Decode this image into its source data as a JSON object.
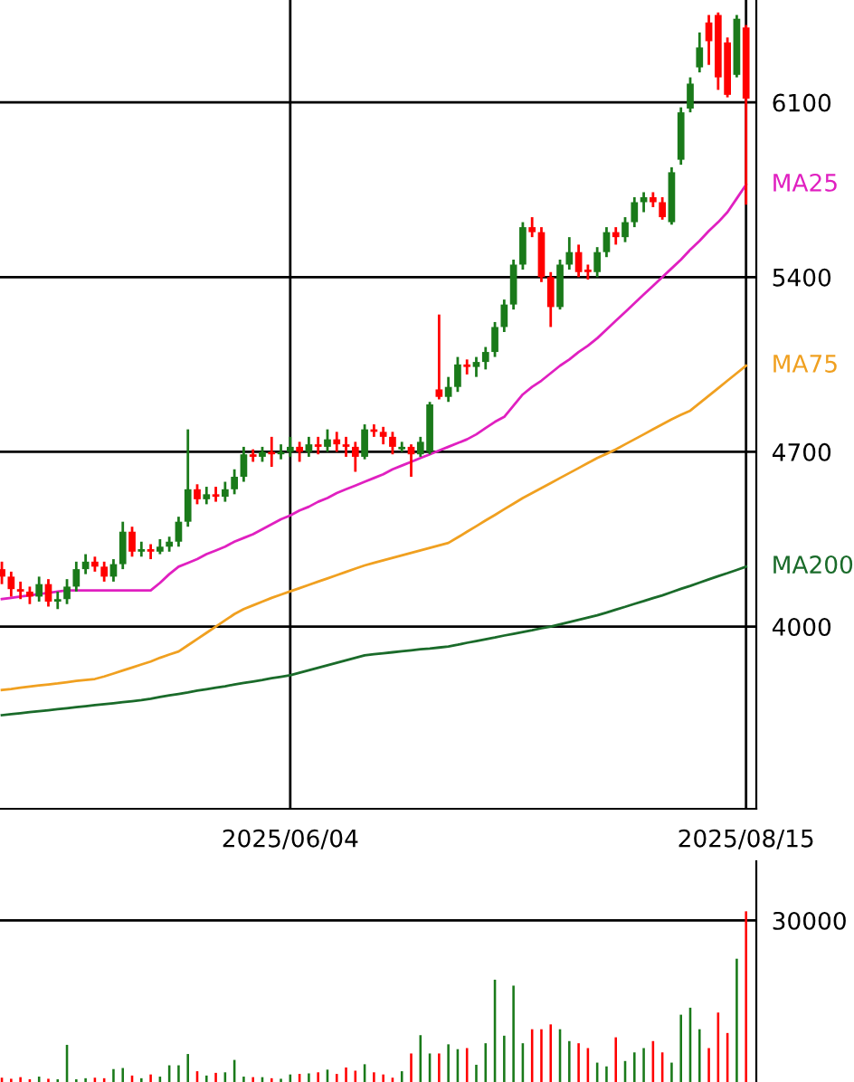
{
  "chart_data": [
    {
      "type": "candlestick",
      "categories": [
        null,
        null,
        null,
        null,
        null,
        null,
        null,
        null,
        null,
        null,
        null,
        null,
        null,
        null,
        null,
        null,
        null,
        null,
        null,
        null,
        null,
        null,
        null,
        null,
        null,
        null,
        null,
        null,
        null,
        null,
        null,
        "2025/06/04",
        null,
        null,
        null,
        null,
        null,
        null,
        null,
        null,
        null,
        null,
        null,
        null,
        null,
        null,
        null,
        null,
        null,
        null,
        null,
        null,
        null,
        null,
        null,
        null,
        null,
        null,
        null,
        null,
        null,
        null,
        null,
        null,
        null,
        null,
        null,
        null,
        null,
        null,
        null,
        null,
        null,
        null,
        null,
        null,
        null,
        null,
        null,
        null,
        "2025/08/15"
      ],
      "ohlc": [
        [
          4230,
          4260,
          4170,
          4200
        ],
        [
          4200,
          4220,
          4120,
          4150
        ],
        [
          4150,
          4180,
          4110,
          4140
        ],
        [
          4140,
          4160,
          4090,
          4120
        ],
        [
          4120,
          4200,
          4100,
          4170
        ],
        [
          4170,
          4190,
          4080,
          4100
        ],
        [
          4100,
          4140,
          4070,
          4110
        ],
        [
          4110,
          4190,
          4090,
          4160
        ],
        [
          4160,
          4260,
          4140,
          4230
        ],
        [
          4230,
          4290,
          4210,
          4260
        ],
        [
          4260,
          4280,
          4220,
          4240
        ],
        [
          4240,
          4260,
          4180,
          4200
        ],
        [
          4200,
          4270,
          4180,
          4250
        ],
        [
          4250,
          4420,
          4230,
          4380
        ],
        [
          4380,
          4400,
          4280,
          4300
        ],
        [
          4300,
          4340,
          4280,
          4310
        ],
        [
          4310,
          4330,
          4270,
          4300
        ],
        [
          4300,
          4350,
          4290,
          4320
        ],
        [
          4320,
          4360,
          4300,
          4340
        ],
        [
          4340,
          4440,
          4320,
          4420
        ],
        [
          4420,
          4790,
          4400,
          4550
        ],
        [
          4550,
          4570,
          4490,
          4510
        ],
        [
          4510,
          4560,
          4490,
          4530
        ],
        [
          4530,
          4560,
          4500,
          4520
        ],
        [
          4520,
          4580,
          4500,
          4550
        ],
        [
          4550,
          4630,
          4530,
          4600
        ],
        [
          4600,
          4720,
          4580,
          4690
        ],
        [
          4690,
          4710,
          4660,
          4680
        ],
        [
          4680,
          4720,
          4660,
          4700
        ],
        [
          4700,
          4760,
          4640,
          4690
        ],
        [
          4690,
          4730,
          4670,
          4700
        ],
        [
          4700,
          4760,
          4680,
          4720
        ],
        [
          4720,
          4740,
          4660,
          4700
        ],
        [
          4700,
          4760,
          4680,
          4730
        ],
        [
          4730,
          4760,
          4690,
          4720
        ],
        [
          4720,
          4790,
          4700,
          4750
        ],
        [
          4750,
          4780,
          4700,
          4730
        ],
        [
          4730,
          4760,
          4680,
          4720
        ],
        [
          4720,
          4740,
          4620,
          4680
        ],
        [
          4680,
          4810,
          4670,
          4790
        ],
        [
          4790,
          4810,
          4760,
          4780
        ],
        [
          4780,
          4800,
          4730,
          4760
        ],
        [
          4760,
          4780,
          4690,
          4720
        ],
        [
          4710,
          4740,
          4700,
          4720
        ],
        [
          4720,
          4730,
          4600,
          4690
        ],
        [
          4690,
          4760,
          4680,
          4740
        ],
        [
          4700,
          4900,
          4690,
          4890
        ],
        [
          4950,
          5250,
          4910,
          4920
        ],
        [
          4920,
          5000,
          4900,
          4960
        ],
        [
          4960,
          5080,
          4940,
          5050
        ],
        [
          5050,
          5070,
          5010,
          5040
        ],
        [
          5040,
          5080,
          5000,
          5060
        ],
        [
          5060,
          5120,
          5030,
          5100
        ],
        [
          5100,
          5220,
          5080,
          5200
        ],
        [
          5200,
          5310,
          5180,
          5290
        ],
        [
          5290,
          5470,
          5270,
          5450
        ],
        [
          5450,
          5620,
          5430,
          5600
        ],
        [
          5600,
          5640,
          5560,
          5580
        ],
        [
          5580,
          5600,
          5380,
          5400
        ],
        [
          5400,
          5420,
          5200,
          5280
        ],
        [
          5280,
          5470,
          5270,
          5450
        ],
        [
          5450,
          5560,
          5430,
          5500
        ],
        [
          5500,
          5530,
          5400,
          5420
        ],
        [
          5430,
          5450,
          5390,
          5420
        ],
        [
          5420,
          5520,
          5400,
          5500
        ],
        [
          5500,
          5600,
          5480,
          5580
        ],
        [
          5580,
          5600,
          5530,
          5560
        ],
        [
          5560,
          5640,
          5540,
          5620
        ],
        [
          5620,
          5720,
          5600,
          5700
        ],
        [
          5700,
          5740,
          5660,
          5720
        ],
        [
          5720,
          5740,
          5680,
          5700
        ],
        [
          5700,
          5720,
          5630,
          5640
        ],
        [
          5620,
          5840,
          5610,
          5820
        ],
        [
          5870,
          6080,
          5850,
          6060
        ],
        [
          6075,
          6200,
          6060,
          6175
        ],
        [
          6240,
          6380,
          6220,
          6320
        ],
        [
          6420,
          6450,
          6250,
          6345
        ],
        [
          6450,
          6460,
          6150,
          6200
        ],
        [
          6340,
          6360,
          6120,
          6130
        ],
        [
          6210,
          6450,
          6200,
          6435
        ],
        [
          6400,
          6410,
          5690,
          6115
        ]
      ],
      "colors": [
        "#ff0000",
        "#ff0000",
        "#ff0000",
        "#ff0000",
        "#1a7a1a",
        "#ff0000",
        "#1a7a1a",
        "#1a7a1a",
        "#1a7a1a",
        "#1a7a1a",
        "#ff0000",
        "#ff0000",
        "#1a7a1a",
        "#1a7a1a",
        "#ff0000",
        "#1a7a1a",
        "#ff0000",
        "#1a7a1a",
        "#1a7a1a",
        "#1a7a1a",
        "#1a7a1a",
        "#ff0000",
        "#1a7a1a",
        "#ff0000",
        "#1a7a1a",
        "#1a7a1a",
        "#1a7a1a",
        "#ff0000",
        "#1a7a1a",
        "#ff0000",
        "#1a7a1a",
        "#1a7a1a",
        "#ff0000",
        "#1a7a1a",
        "#ff0000",
        "#1a7a1a",
        "#ff0000",
        "#ff0000",
        "#ff0000",
        "#1a7a1a",
        "#ff0000",
        "#ff0000",
        "#ff0000",
        "#1a7a1a",
        "#ff0000",
        "#1a7a1a",
        "#1a7a1a",
        "#ff0000",
        "#1a7a1a",
        "#1a7a1a",
        "#ff0000",
        "#1a7a1a",
        "#1a7a1a",
        "#1a7a1a",
        "#1a7a1a",
        "#1a7a1a",
        "#1a7a1a",
        "#ff0000",
        "#ff0000",
        "#ff0000",
        "#1a7a1a",
        "#1a7a1a",
        "#ff0000",
        "#ff0000",
        "#1a7a1a",
        "#1a7a1a",
        "#ff0000",
        "#1a7a1a",
        "#1a7a1a",
        "#1a7a1a",
        "#ff0000",
        "#ff0000",
        "#1a7a1a",
        "#1a7a1a",
        "#1a7a1a",
        "#1a7a1a",
        "#ff0000",
        "#ff0000",
        "#ff0000",
        "#1a7a1a",
        "#ff0000"
      ],
      "series": [
        {
          "name": "MA25",
          "type": "line",
          "color": "#e020c0",
          "values": [
            4110,
            4115,
            4120,
            4125,
            4130,
            4135,
            4140,
            4145,
            4145,
            4145,
            4145,
            4145,
            4145,
            4145,
            4145,
            4145,
            4145,
            4175,
            4210,
            4240,
            4255,
            4270,
            4290,
            4305,
            4320,
            4340,
            4355,
            4370,
            4390,
            4410,
            4430,
            4445,
            4465,
            4480,
            4500,
            4515,
            4535,
            4550,
            4565,
            4580,
            4595,
            4610,
            4630,
            4645,
            4660,
            4675,
            4690,
            4705,
            4720,
            4735,
            4750,
            4770,
            4795,
            4820,
            4840,
            4885,
            4930,
            4960,
            4985,
            5015,
            5045,
            5070,
            5100,
            5125,
            5155,
            5190,
            5225,
            5260,
            5295,
            5330,
            5365,
            5400,
            5435,
            5470,
            5510,
            5545,
            5585,
            5620,
            5660,
            5715,
            5770
          ]
        },
        {
          "name": "MA75",
          "type": "line",
          "color": "#f0a020",
          "values": [
            3746,
            3750,
            3755,
            3760,
            3764,
            3768,
            3772,
            3777,
            3782,
            3786,
            3790,
            3800,
            3812,
            3824,
            3836,
            3848,
            3860,
            3875,
            3888,
            3900,
            3925,
            3950,
            3975,
            4000,
            4025,
            4050,
            4070,
            4085,
            4100,
            4115,
            4128,
            4141,
            4154,
            4167,
            4180,
            4193,
            4206,
            4219,
            4232,
            4245,
            4255,
            4265,
            4275,
            4285,
            4295,
            4305,
            4315,
            4325,
            4335,
            4357,
            4380,
            4402,
            4425,
            4447,
            4470,
            4492,
            4515,
            4535,
            4555,
            4575,
            4595,
            4615,
            4635,
            4655,
            4675,
            4692,
            4710,
            4730,
            4750,
            4770,
            4790,
            4810,
            4830,
            4848,
            4865,
            4895,
            4925,
            4955,
            4985,
            5015,
            5045
          ]
        },
        {
          "name": "MA200",
          "type": "line",
          "color": "#1a6b2a",
          "values": [
            3645,
            3649,
            3653,
            3657,
            3661,
            3665,
            3669,
            3673,
            3677,
            3681,
            3685,
            3689,
            3693,
            3697,
            3701,
            3705,
            3711,
            3718,
            3724,
            3730,
            3736,
            3743,
            3749,
            3755,
            3761,
            3768,
            3774,
            3780,
            3786,
            3793,
            3799,
            3805,
            3815,
            3825,
            3835,
            3845,
            3855,
            3865,
            3875,
            3885,
            3889,
            3893,
            3897,
            3901,
            3905,
            3909,
            3912,
            3916,
            3920,
            3927,
            3935,
            3942,
            3949,
            3956,
            3964,
            3971,
            3978,
            3985,
            3993,
            4000,
            4009,
            4018,
            4027,
            4036,
            4045,
            4056,
            4068,
            4079,
            4091,
            4102,
            4114,
            4125,
            4138,
            4151,
            4163,
            4176,
            4189,
            4202,
            4214,
            4227,
            4240
          ]
        }
      ],
      "ylim": [
        3270,
        6510
      ],
      "yticks": [
        4000,
        4700,
        5400,
        6100
      ],
      "grid": true
    },
    {
      "type": "bar",
      "categories": [
        null,
        null,
        null,
        null,
        null,
        null,
        null,
        null,
        null,
        null,
        null,
        null,
        null,
        null,
        null,
        null,
        null,
        null,
        null,
        null,
        null,
        null,
        null,
        null,
        null,
        null,
        null,
        null,
        null,
        null,
        null,
        null,
        null,
        null,
        null,
        null,
        null,
        null,
        null,
        null,
        null,
        null,
        null,
        null,
        null,
        null,
        null,
        null,
        null,
        null,
        null,
        null,
        null,
        null,
        null,
        null,
        null,
        null,
        null,
        null,
        null,
        null,
        null,
        null,
        null,
        null,
        null,
        null,
        null,
        null,
        null,
        null,
        null,
        null,
        null,
        null,
        null,
        null,
        null,
        null,
        null
      ],
      "values": [
        800,
        600,
        900,
        500,
        1000,
        600,
        500,
        6900,
        500,
        700,
        800,
        700,
        2400,
        2600,
        1200,
        700,
        1400,
        1000,
        3100,
        3100,
        5200,
        2000,
        1200,
        1700,
        1800,
        4100,
        1000,
        900,
        900,
        700,
        600,
        1400,
        1500,
        1600,
        1800,
        2300,
        1500,
        2700,
        2100,
        3300,
        1800,
        1400,
        800,
        2000,
        5300,
        8700,
        5300,
        5300,
        7000,
        6100,
        6300,
        3200,
        7200,
        19000,
        8600,
        17900,
        7200,
        9800,
        9800,
        10700,
        9800,
        7600,
        7200,
        6300,
        3600,
        2900,
        8300,
        3900,
        5500,
        6300,
        7600,
        5500,
        3600,
        12500,
        13800,
        9800,
        6300,
        12900,
        9100,
        22900,
        31700
      ],
      "colors": [
        "#ff0000",
        "#ff0000",
        "#ff0000",
        "#ff0000",
        "#1a7a1a",
        "#ff0000",
        "#1a7a1a",
        "#1a7a1a",
        "#1a7a1a",
        "#1a7a1a",
        "#ff0000",
        "#ff0000",
        "#1a7a1a",
        "#1a7a1a",
        "#ff0000",
        "#1a7a1a",
        "#ff0000",
        "#1a7a1a",
        "#1a7a1a",
        "#1a7a1a",
        "#1a7a1a",
        "#ff0000",
        "#1a7a1a",
        "#ff0000",
        "#1a7a1a",
        "#1a7a1a",
        "#1a7a1a",
        "#ff0000",
        "#1a7a1a",
        "#ff0000",
        "#1a7a1a",
        "#1a7a1a",
        "#ff0000",
        "#1a7a1a",
        "#ff0000",
        "#1a7a1a",
        "#ff0000",
        "#ff0000",
        "#ff0000",
        "#1a7a1a",
        "#ff0000",
        "#ff0000",
        "#ff0000",
        "#1a7a1a",
        "#ff0000",
        "#1a7a1a",
        "#1a7a1a",
        "#ff0000",
        "#1a7a1a",
        "#1a7a1a",
        "#ff0000",
        "#1a7a1a",
        "#1a7a1a",
        "#1a7a1a",
        "#1a7a1a",
        "#1a7a1a",
        "#1a7a1a",
        "#ff0000",
        "#ff0000",
        "#ff0000",
        "#1a7a1a",
        "#1a7a1a",
        "#ff0000",
        "#ff0000",
        "#1a7a1a",
        "#1a7a1a",
        "#ff0000",
        "#1a7a1a",
        "#1a7a1a",
        "#1a7a1a",
        "#ff0000",
        "#ff0000",
        "#1a7a1a",
        "#1a7a1a",
        "#1a7a1a",
        "#1a7a1a",
        "#ff0000",
        "#ff0000",
        "#ff0000",
        "#1a7a1a",
        "#ff0000"
      ],
      "ylim": [
        0,
        41000
      ],
      "yticks": [
        30000
      ],
      "grid": "y"
    }
  ]
}
